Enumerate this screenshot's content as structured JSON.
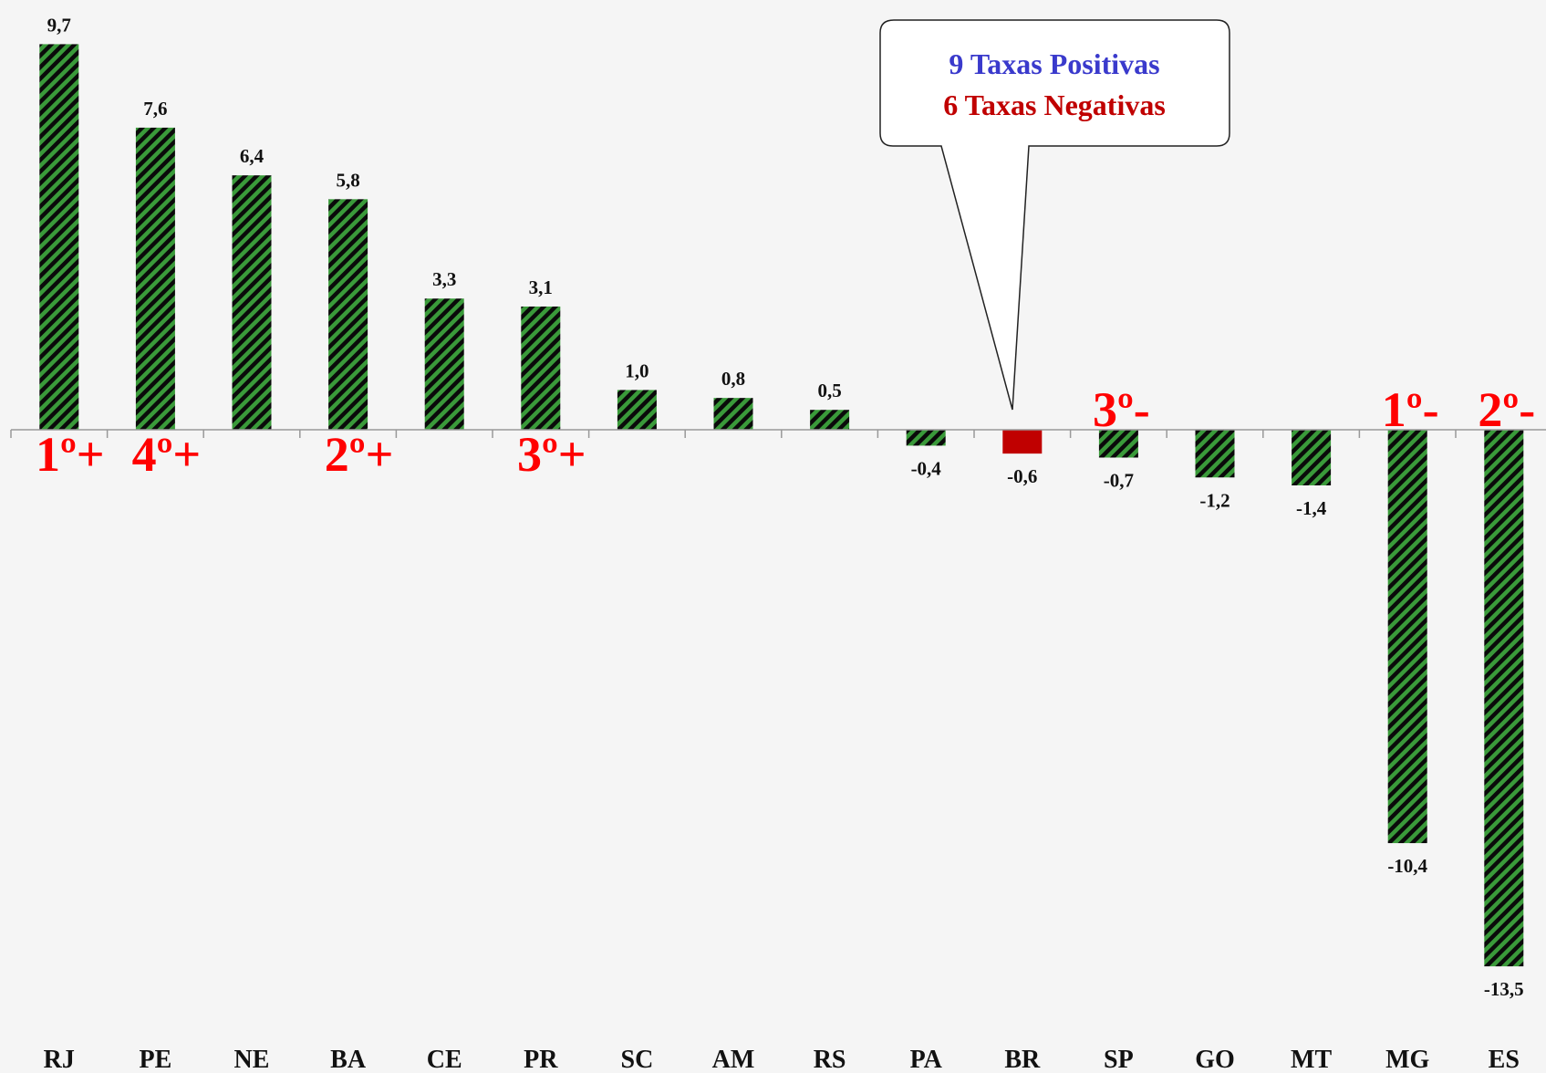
{
  "chart_data": {
    "type": "bar",
    "categories": [
      "RJ",
      "PE",
      "NE",
      "BA",
      "CE",
      "PR",
      "SC",
      "AM",
      "RS",
      "PA",
      "BR",
      "SP",
      "GO",
      "MT",
      "MG",
      "ES"
    ],
    "values": [
      9.7,
      7.6,
      6.4,
      5.8,
      3.3,
      3.1,
      1.0,
      0.8,
      0.5,
      -0.4,
      -0.6,
      -0.7,
      -1.2,
      -1.4,
      -10.4,
      -13.5
    ],
    "value_labels": [
      "9,7",
      "7,6",
      "6,4",
      "5,8",
      "3,3",
      "3,1",
      "1,0",
      "0,8",
      "0,5",
      "-0,4",
      "-0,6",
      "-0,7",
      "-1,2",
      "-1,4",
      "-10,4",
      "-13,5"
    ],
    "colors": [
      "#3a9a3a",
      "#3a9a3a",
      "#3a9a3a",
      "#3a9a3a",
      "#3a9a3a",
      "#3a9a3a",
      "#3a9a3a",
      "#3a9a3a",
      "#3a9a3a",
      "#3a9a3a",
      "#c00000",
      "#3a9a3a",
      "#3a9a3a",
      "#3a9a3a",
      "#3a9a3a",
      "#3a9a3a"
    ],
    "annotations": [
      {
        "text": "1º+",
        "category": "RJ"
      },
      {
        "text": "4º+",
        "category": "PE"
      },
      {
        "text": "2º+",
        "category": "BA"
      },
      {
        "text": "3º+",
        "category": "PR"
      },
      {
        "text": "3º-",
        "category": "SP"
      },
      {
        "text": "1º-",
        "category": "MG"
      },
      {
        "text": "2º-",
        "category": "ES"
      }
    ],
    "callout": {
      "positive": "9 Taxas Positivas",
      "negative": "6 Taxas Negativas",
      "points_to": "BR"
    }
  }
}
